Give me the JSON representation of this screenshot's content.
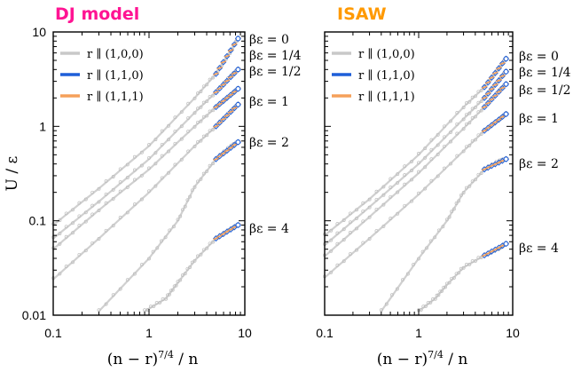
{
  "chart_data": [
    {
      "type": "scatter",
      "title": "DJ model",
      "title_color": "#ff1493",
      "xlabel": "(n − r)^{7/4} / n",
      "ylabel": "U / ε",
      "xscale": "log",
      "yscale": "log",
      "xlim": [
        0.1,
        10
      ],
      "ylim": [
        0.01,
        10
      ],
      "x_ticks": [
        "0.1",
        "1",
        "10"
      ],
      "y_ticks": [
        "0.01",
        "0.1",
        "1",
        "10"
      ],
      "grid": false,
      "legend_position": "top-left",
      "legend": [
        {
          "label": "r ∥ (1,0,0)",
          "color": "#c8c8c8"
        },
        {
          "label": "r ∥ (1,1,0)",
          "color": "#1e5fd8"
        },
        {
          "label": "r ∥ (1,1,1)",
          "color": "#f5a05a"
        }
      ],
      "series": [
        {
          "annotation": "βε = 0",
          "x": [
            0.1,
            0.3,
            1,
            3,
            5,
            7,
            8.5
          ],
          "y": [
            0.09,
            0.22,
            0.62,
            2.0,
            3.6,
            6.0,
            8.5
          ]
        },
        {
          "annotation": "βε = 1/4",
          "x": [
            0.1,
            0.3,
            1,
            3,
            5,
            7,
            8.5
          ],
          "y": [
            0.065,
            0.16,
            0.45,
            1.4,
            2.3,
            3.3,
            4.0
          ]
        },
        {
          "annotation": "βε = 1/2",
          "x": [
            0.1,
            0.3,
            1,
            3,
            5,
            7,
            8.5
          ],
          "y": [
            0.05,
            0.13,
            0.35,
            1.0,
            1.6,
            2.1,
            2.5
          ]
        },
        {
          "annotation": "βε = 1",
          "x": [
            0.1,
            0.3,
            1,
            3,
            5,
            7,
            8.5
          ],
          "y": [
            0.024,
            0.065,
            0.2,
            0.62,
            1.0,
            1.4,
            1.7
          ]
        },
        {
          "annotation": "βε = 2",
          "x": [
            0.3,
            1,
            2,
            3,
            5,
            7,
            8.5
          ],
          "y": [
            0.011,
            0.04,
            0.1,
            0.23,
            0.45,
            0.6,
            0.68
          ]
        },
        {
          "annotation": "βε = 4",
          "x": [
            0.9,
            1.5,
            2,
            3,
            5,
            7,
            8.5
          ],
          "y": [
            0.011,
            0.015,
            0.022,
            0.038,
            0.065,
            0.08,
            0.09
          ]
        }
      ],
      "annotations": [
        "βε = 0",
        "βε = 1/4",
        "βε = 1/2",
        "βε = 1",
        "βε = 2",
        "βε = 4"
      ]
    },
    {
      "type": "scatter",
      "title": "ISAW",
      "title_color": "#ff9900",
      "xlabel": "(n − r)^{7/4} / n",
      "ylabel": "",
      "xscale": "log",
      "yscale": "log",
      "xlim": [
        0.1,
        10
      ],
      "ylim": [
        0.01,
        10
      ],
      "x_ticks": [
        "0.1",
        "1",
        "10"
      ],
      "grid": false,
      "legend_position": "top-left",
      "legend": [
        {
          "label": "r ∥ (1,0,0)",
          "color": "#c8c8c8"
        },
        {
          "label": "r ∥ (1,1,0)",
          "color": "#1e5fd8"
        },
        {
          "label": "r ∥ (1,1,1)",
          "color": "#f5a05a"
        }
      ],
      "series": [
        {
          "annotation": "βε = 0",
          "x": [
            0.1,
            0.3,
            1,
            3,
            5,
            7,
            8.5
          ],
          "y": [
            0.07,
            0.17,
            0.5,
            1.6,
            2.6,
            4.0,
            5.2
          ]
        },
        {
          "annotation": "βε = 1/4",
          "x": [
            0.1,
            0.3,
            1,
            3,
            5,
            7,
            8.5
          ],
          "y": [
            0.055,
            0.14,
            0.4,
            1.2,
            2.0,
            3.0,
            3.8
          ]
        },
        {
          "annotation": "βε = 1/2",
          "x": [
            0.1,
            0.3,
            1,
            3,
            5,
            7,
            8.5
          ],
          "y": [
            0.042,
            0.11,
            0.32,
            0.95,
            1.6,
            2.3,
            2.8
          ]
        },
        {
          "annotation": "βε = 1",
          "x": [
            0.1,
            0.3,
            1,
            3,
            5,
            7,
            8.5
          ],
          "y": [
            0.025,
            0.065,
            0.19,
            0.55,
            0.9,
            1.15,
            1.35
          ]
        },
        {
          "annotation": "βε = 2",
          "x": [
            0.4,
            1,
            2,
            3,
            5,
            7,
            8.5
          ],
          "y": [
            0.011,
            0.04,
            0.1,
            0.2,
            0.35,
            0.42,
            0.45
          ]
        },
        {
          "annotation": "βε = 4",
          "x": [
            1.0,
            1.5,
            2,
            3,
            5,
            7,
            8.5
          ],
          "y": [
            0.011,
            0.015,
            0.021,
            0.032,
            0.043,
            0.05,
            0.057
          ]
        }
      ],
      "annotations": [
        "βε = 0",
        "βε = 1/4",
        "βε = 1/2",
        "βε = 1",
        "βε = 2",
        "βε = 4"
      ]
    }
  ]
}
